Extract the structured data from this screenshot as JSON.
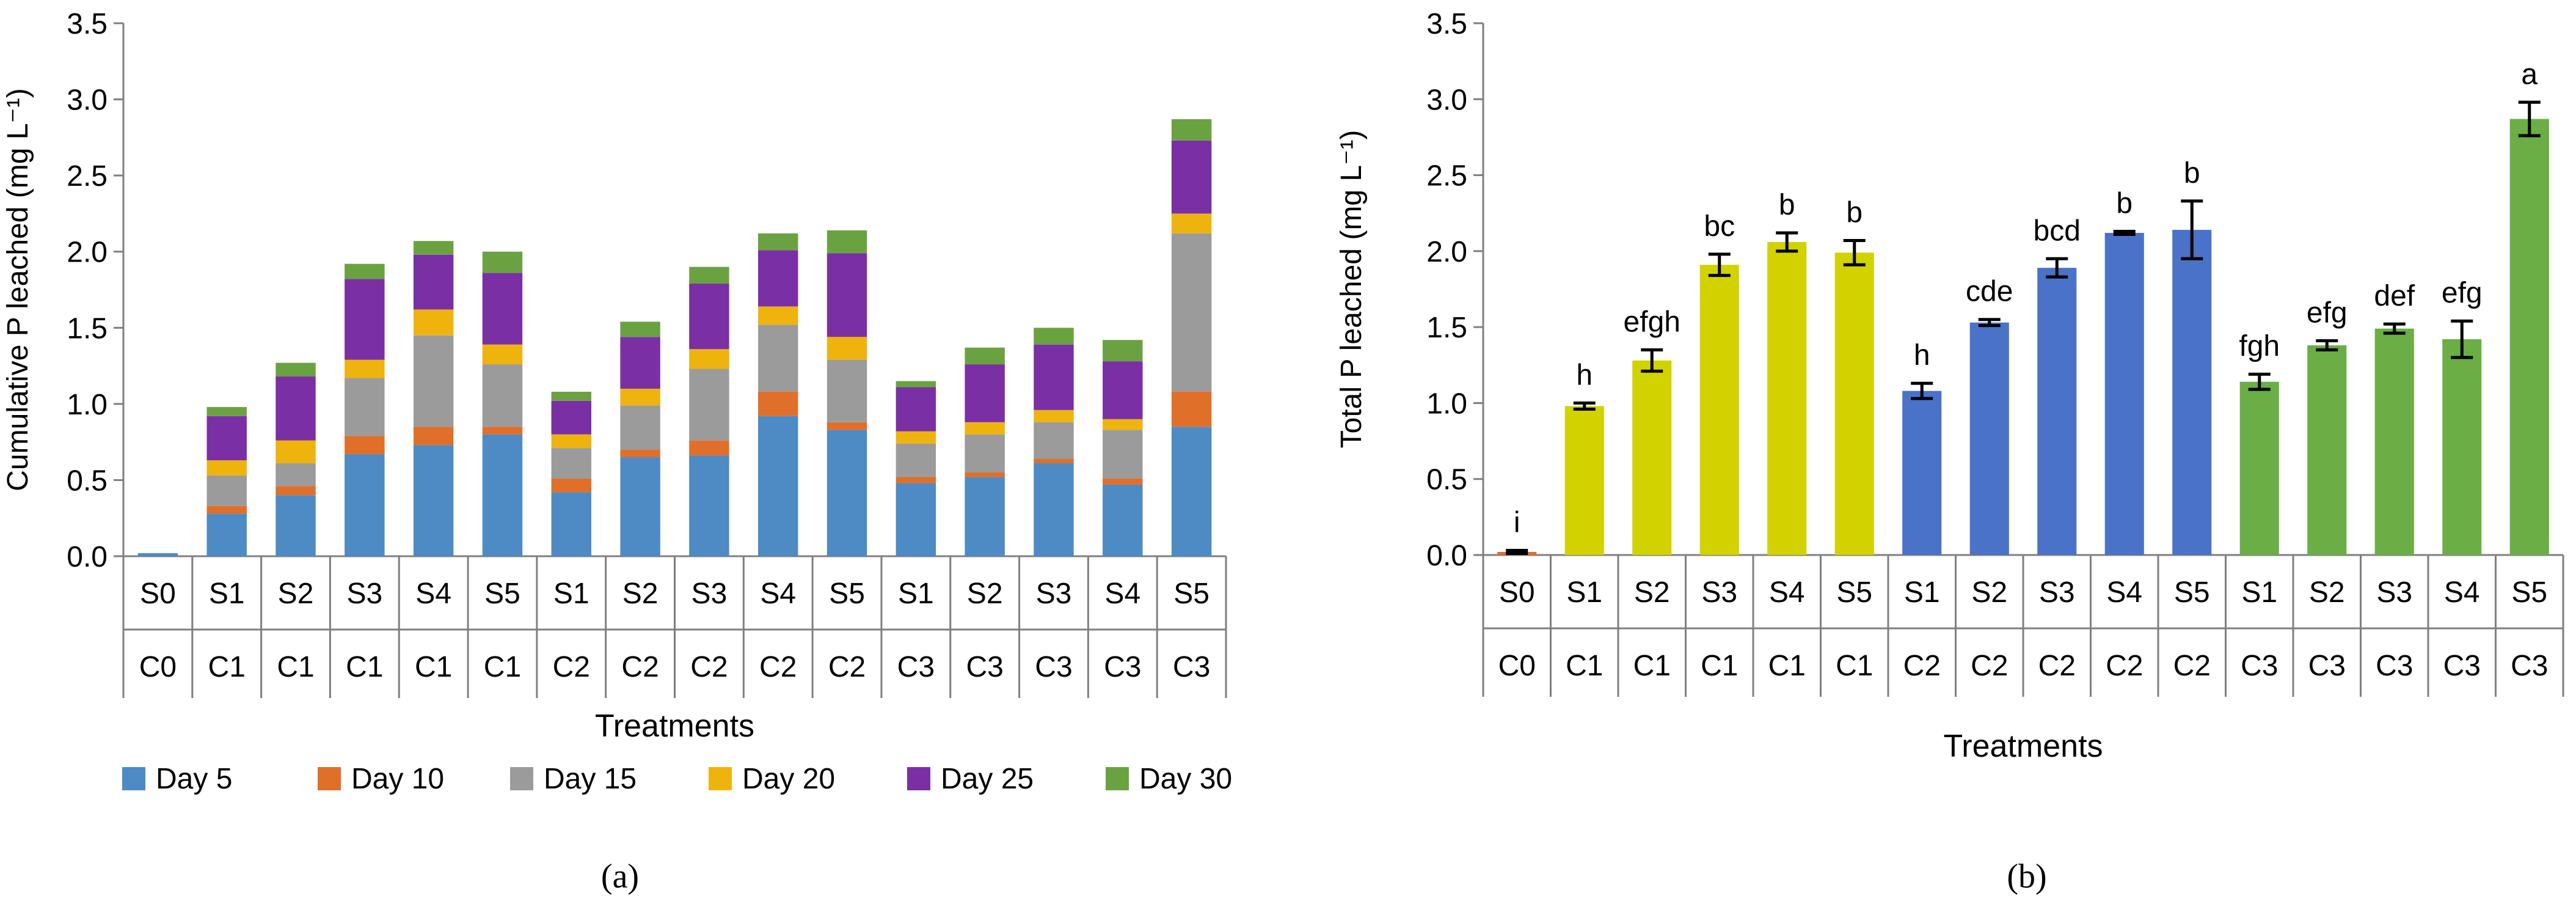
{
  "panel_a_label": "(a)",
  "panel_b_label": "(b)",
  "colors": {
    "day5": "#4E8AC4",
    "day10": "#E06F2A",
    "day15": "#9B9B9B",
    "day20": "#EFB30E",
    "day25": "#7A2FA5",
    "day30": "#6AA241",
    "c1": "#D2D200",
    "c2": "#4A72C8",
    "c3": "#6AAE45",
    "c0": "#E06F2A",
    "axis": "#7F7F7F"
  },
  "chart_data": [
    {
      "type": "bar",
      "stacked": true,
      "title": "",
      "xlabel": "Treatments",
      "ylabel": "Cumulative P leached (mg L⁻¹)",
      "ylim": [
        0,
        3.5
      ],
      "yticks": [
        "0.0",
        "0.5",
        "1.0",
        "1.5",
        "2.0",
        "2.5",
        "3.0",
        "3.5"
      ],
      "categories": [
        "S0 C0",
        "S1 C1",
        "S2 C1",
        "S3 C1",
        "S4 C1",
        "S5 C1",
        "S1 C2",
        "S2 C2",
        "S3 C2",
        "S4 C2",
        "S5 C2",
        "S1 C3",
        "S2 C3",
        "S3 C3",
        "S4 C3",
        "S5 C3"
      ],
      "cat_row1": [
        "S0",
        "S1",
        "S2",
        "S3",
        "S4",
        "S5",
        "S1",
        "S2",
        "S3",
        "S4",
        "S5",
        "S1",
        "S2",
        "S3",
        "S4",
        "S5"
      ],
      "cat_row2": [
        "C0",
        "C1",
        "C1",
        "C1",
        "C1",
        "C1",
        "C2",
        "C2",
        "C2",
        "C2",
        "C2",
        "C3",
        "C3",
        "C3",
        "C3",
        "C3"
      ],
      "legend_position": "bottom",
      "series": [
        {
          "name": "Day 5",
          "color_key": "day5",
          "values": [
            0.02,
            0.28,
            0.4,
            0.67,
            0.73,
            0.8,
            0.42,
            0.65,
            0.66,
            0.92,
            0.83,
            0.48,
            0.52,
            0.61,
            0.47,
            0.85
          ]
        },
        {
          "name": "Day 10",
          "color_key": "day10",
          "values": [
            0.0,
            0.05,
            0.06,
            0.12,
            0.12,
            0.05,
            0.09,
            0.05,
            0.1,
            0.16,
            0.05,
            0.04,
            0.03,
            0.03,
            0.04,
            0.23
          ]
        },
        {
          "name": "Day 15",
          "color_key": "day15",
          "values": [
            0.0,
            0.2,
            0.15,
            0.38,
            0.6,
            0.41,
            0.2,
            0.29,
            0.47,
            0.44,
            0.41,
            0.22,
            0.25,
            0.24,
            0.32,
            1.04
          ]
        },
        {
          "name": "Day 20",
          "color_key": "day20",
          "values": [
            0.0,
            0.1,
            0.15,
            0.12,
            0.17,
            0.13,
            0.09,
            0.11,
            0.13,
            0.12,
            0.15,
            0.08,
            0.08,
            0.08,
            0.07,
            0.13
          ]
        },
        {
          "name": "Day 25",
          "color_key": "day25",
          "values": [
            0.0,
            0.29,
            0.42,
            0.53,
            0.36,
            0.47,
            0.22,
            0.34,
            0.43,
            0.37,
            0.55,
            0.29,
            0.38,
            0.43,
            0.38,
            0.48
          ]
        },
        {
          "name": "Day 30",
          "color_key": "day30",
          "values": [
            0.0,
            0.06,
            0.09,
            0.1,
            0.09,
            0.14,
            0.06,
            0.1,
            0.11,
            0.11,
            0.15,
            0.04,
            0.11,
            0.11,
            0.14,
            0.14
          ]
        }
      ]
    },
    {
      "type": "bar",
      "stacked": false,
      "title": "",
      "xlabel": "Treatments",
      "ylabel": "Total P leached (mg L⁻¹)",
      "ylim": [
        0,
        3.5
      ],
      "yticks": [
        "0.0",
        "0.5",
        "1.0",
        "1.5",
        "2.0",
        "2.5",
        "3.0",
        "3.5"
      ],
      "categories": [
        "S0 C0",
        "S1 C1",
        "S2 C1",
        "S3 C1",
        "S4 C1",
        "S5 C1",
        "S1 C2",
        "S2 C2",
        "S3 C2",
        "S4 C2",
        "S5 C2",
        "S1 C3",
        "S2 C3",
        "S3 C3",
        "S4 C3",
        "S5 C3"
      ],
      "cat_row1": [
        "S0",
        "S1",
        "S2",
        "S3",
        "S4",
        "S5",
        "S1",
        "S2",
        "S3",
        "S4",
        "S5",
        "S1",
        "S2",
        "S3",
        "S4",
        "S5"
      ],
      "cat_row2": [
        "C0",
        "C1",
        "C1",
        "C1",
        "C1",
        "C1",
        "C2",
        "C2",
        "C2",
        "C2",
        "C2",
        "C3",
        "C3",
        "C3",
        "C3",
        "C3"
      ],
      "values": [
        0.02,
        0.98,
        1.28,
        1.91,
        2.06,
        1.99,
        1.08,
        1.53,
        1.89,
        2.12,
        2.14,
        1.14,
        1.38,
        1.49,
        1.42,
        2.87
      ],
      "errors": [
        0.01,
        0.02,
        0.07,
        0.07,
        0.06,
        0.08,
        0.05,
        0.02,
        0.06,
        0.01,
        0.19,
        0.05,
        0.03,
        0.03,
        0.12,
        0.11
      ],
      "letters": [
        "i",
        "h",
        "efgh",
        "bc",
        "b",
        "b",
        "h",
        "cde",
        "bcd",
        "b",
        "b",
        "fgh",
        "efg",
        "def",
        "efg",
        "a"
      ],
      "bar_color_keys": [
        "c0",
        "c1",
        "c1",
        "c1",
        "c1",
        "c1",
        "c2",
        "c2",
        "c2",
        "c2",
        "c2",
        "c3",
        "c3",
        "c3",
        "c3",
        "c3"
      ]
    }
  ]
}
